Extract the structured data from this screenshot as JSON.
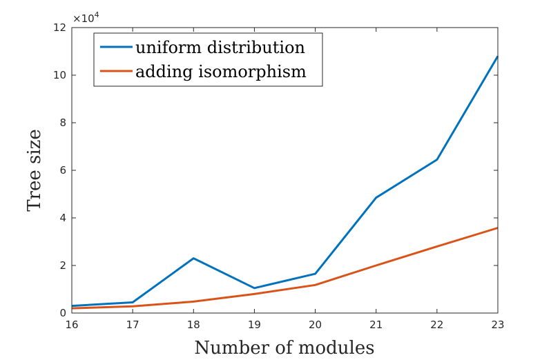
{
  "chart_data": {
    "type": "line",
    "x": [
      16,
      17,
      18,
      19,
      20,
      21,
      22,
      23
    ],
    "series": [
      {
        "name": "uniform distribution",
        "color": "#0072BD",
        "values": [
          3000,
          4500,
          23000,
          10500,
          16500,
          48500,
          64500,
          108000
        ]
      },
      {
        "name": "adding isomorphism",
        "color": "#D95319",
        "values": [
          2000,
          2800,
          4800,
          8000,
          11800,
          20000,
          28000,
          35800
        ]
      }
    ],
    "xlabel": "Number of modules",
    "ylabel": "Tree size",
    "xlim": [
      16,
      23
    ],
    "ylim": [
      0,
      120000
    ],
    "x_ticks": [
      "16",
      "17",
      "18",
      "19",
      "20",
      "21",
      "22",
      "23"
    ],
    "y_ticks": [
      "0",
      "2",
      "4",
      "6",
      "8",
      "10",
      "12"
    ],
    "y_tick_values": [
      0,
      20000,
      40000,
      60000,
      80000,
      100000,
      120000
    ],
    "y_exponent_label": "×10",
    "y_exponent_power": "4",
    "grid": false,
    "legend_position": "top-left"
  }
}
